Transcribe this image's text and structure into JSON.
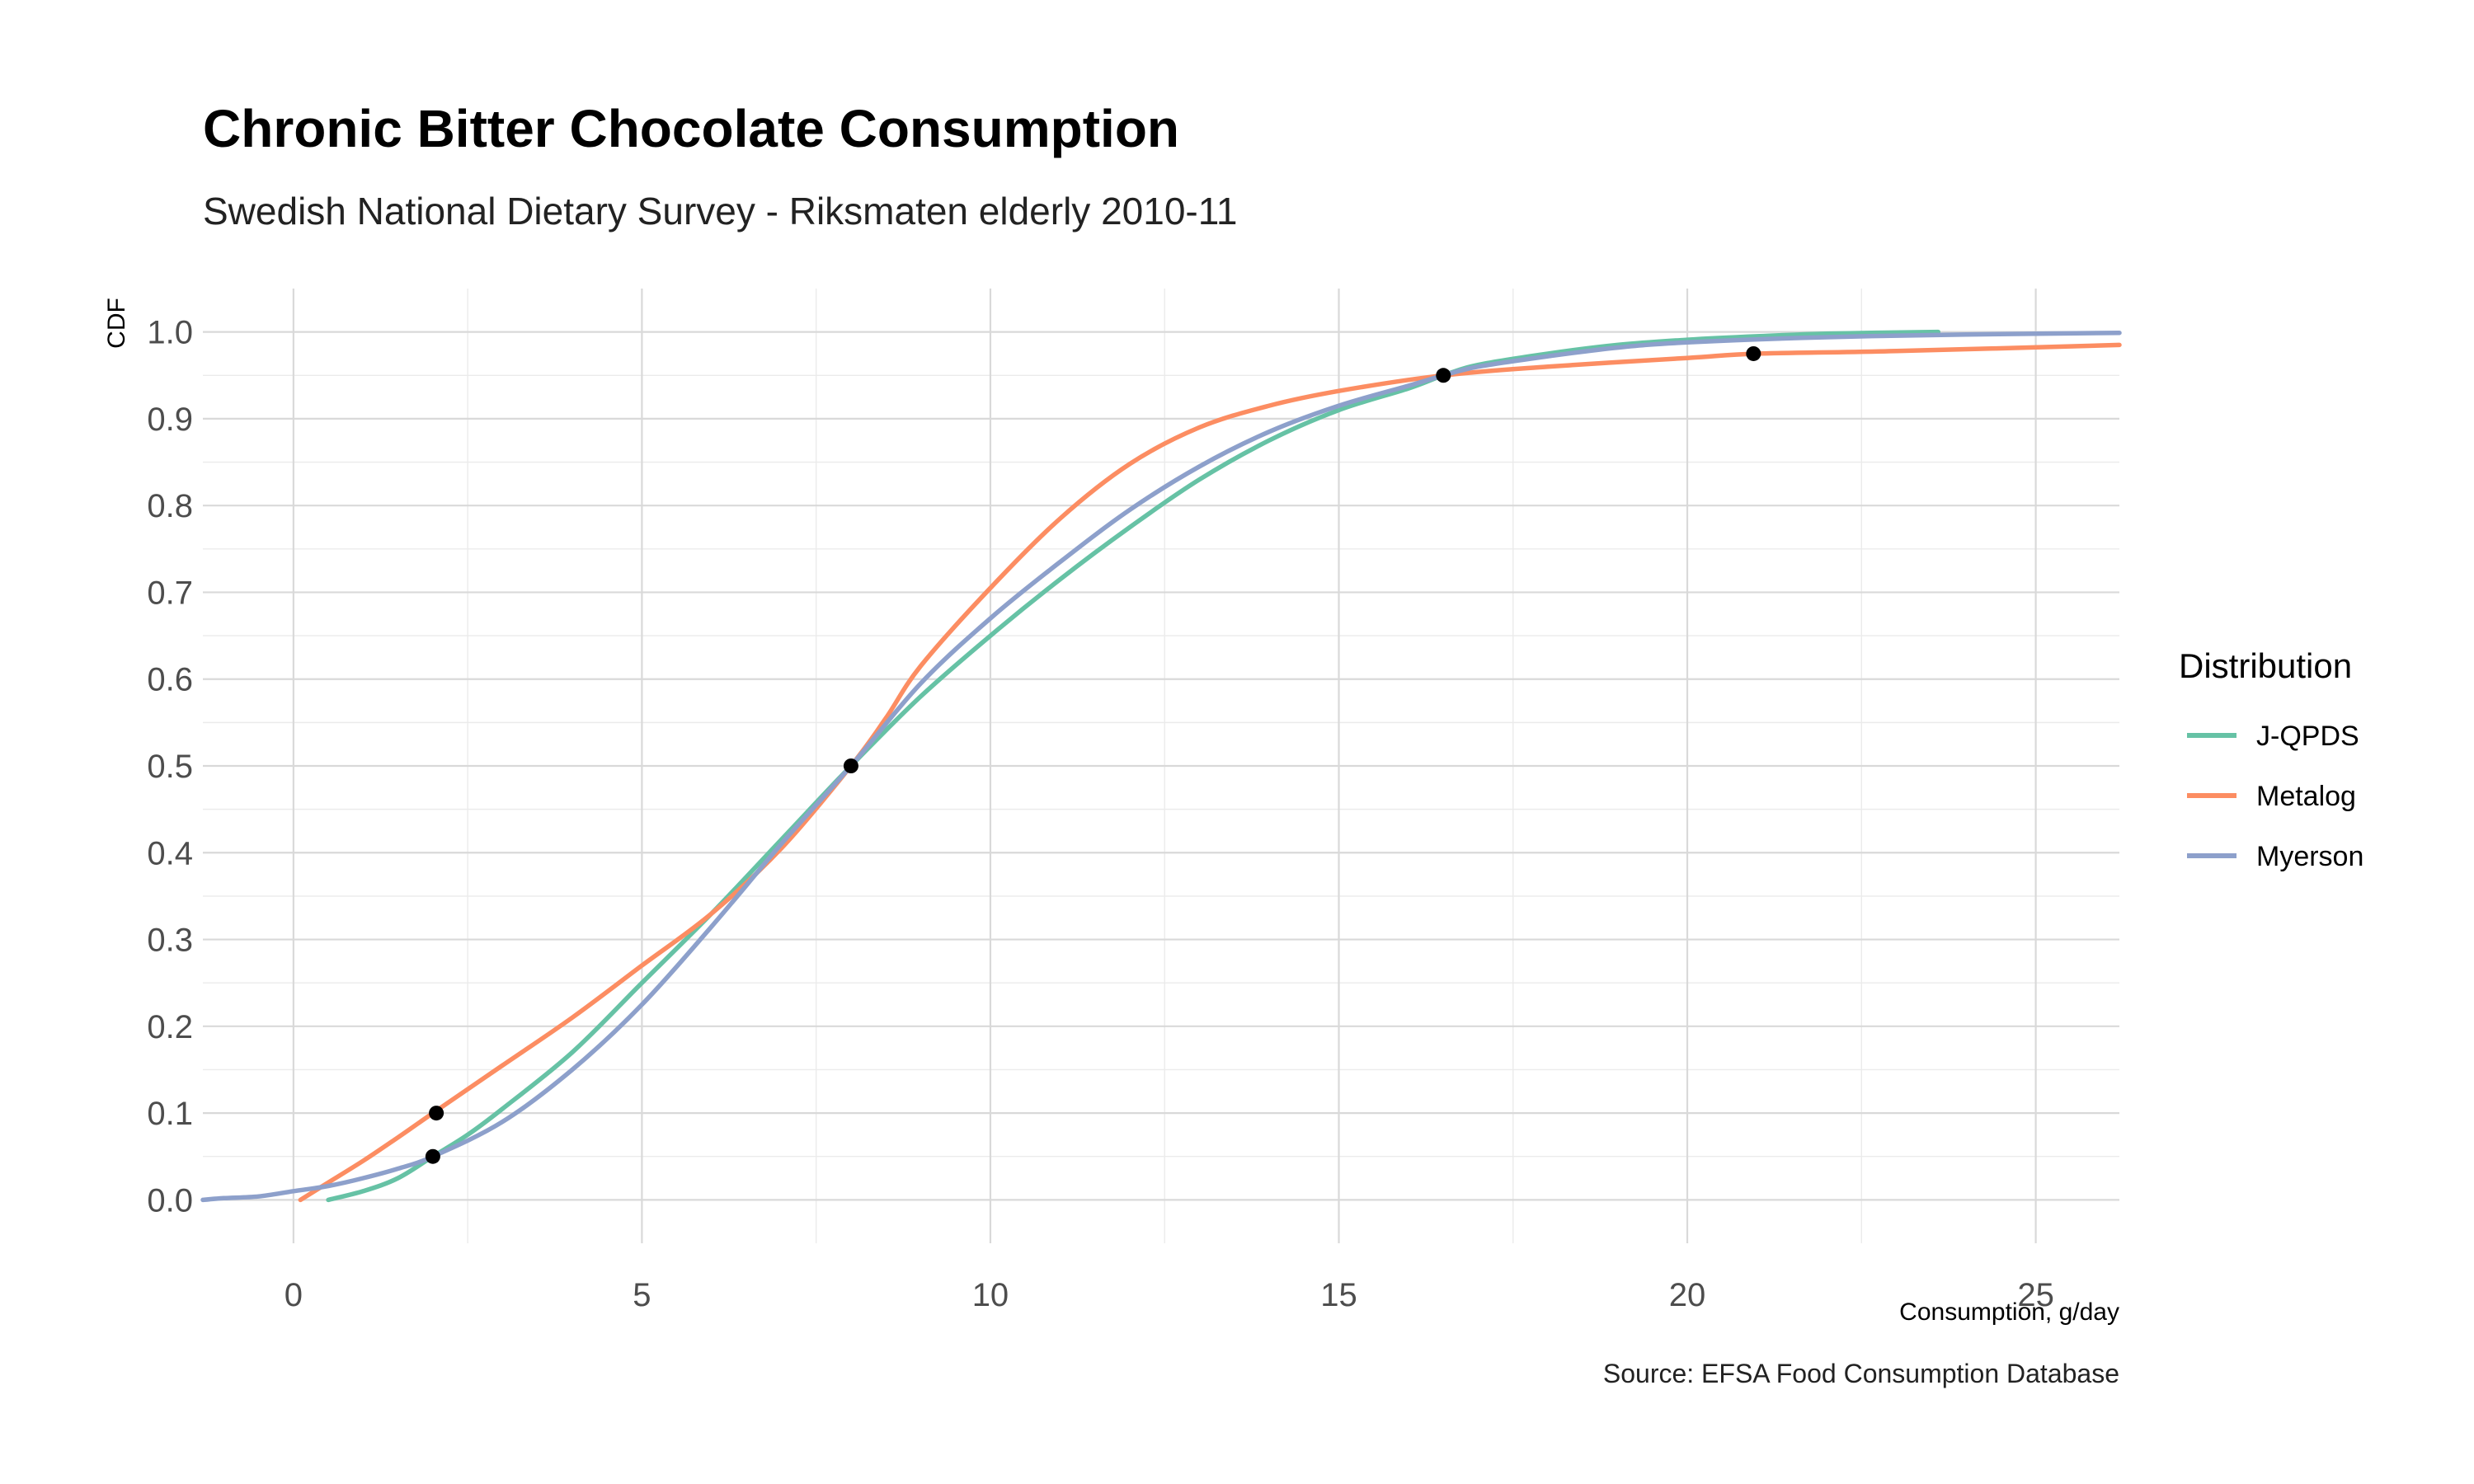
{
  "chart_data": {
    "type": "line",
    "title": "Chronic Bitter Chocolate Consumption",
    "subtitle": "Swedish National Dietary Survey - Riksmaten elderly 2010-11",
    "xlabel": "Consumption, g/day",
    "ylabel": "CDF",
    "caption": "Source: EFSA Food Consumption Database",
    "xlim": [
      -1.3,
      26.2
    ],
    "ylim": [
      -0.05,
      1.05
    ],
    "x_ticks": [
      0,
      5,
      10,
      15,
      20,
      25
    ],
    "x_tick_labels": [
      "0",
      "5",
      "10",
      "15",
      "20",
      "25"
    ],
    "y_ticks": [
      0,
      0.1,
      0.2,
      0.3,
      0.4,
      0.5,
      0.6,
      0.7,
      0.8,
      0.9,
      1.0
    ],
    "y_tick_labels": [
      "0.0",
      "0.1",
      "0.2",
      "0.3",
      "0.4",
      "0.5",
      "0.6",
      "0.7",
      "0.8",
      "0.9",
      "1.0"
    ],
    "grid": true,
    "legend": {
      "title": "Distribution",
      "position": "right"
    },
    "series": [
      {
        "name": "J-QPDS",
        "color": "#66c2a5",
        "points": [
          [
            0.5,
            0.0
          ],
          [
            1.0,
            0.01
          ],
          [
            1.5,
            0.025
          ],
          [
            2.0,
            0.05
          ],
          [
            2.5,
            0.075
          ],
          [
            3.0,
            0.105
          ],
          [
            4.0,
            0.17
          ],
          [
            5.0,
            0.25
          ],
          [
            6.0,
            0.33
          ],
          [
            7.0,
            0.415
          ],
          [
            8.0,
            0.5
          ],
          [
            9.0,
            0.58
          ],
          [
            10.0,
            0.65
          ],
          [
            11.0,
            0.715
          ],
          [
            12.0,
            0.775
          ],
          [
            13.0,
            0.83
          ],
          [
            14.0,
            0.875
          ],
          [
            15.0,
            0.91
          ],
          [
            16.0,
            0.935
          ],
          [
            16.5,
            0.95
          ],
          [
            17.0,
            0.962
          ],
          [
            18.0,
            0.975
          ],
          [
            19.0,
            0.985
          ],
          [
            20.0,
            0.991
          ],
          [
            21.0,
            0.995
          ],
          [
            22.0,
            0.998
          ],
          [
            23.6,
            1.0
          ]
        ]
      },
      {
        "name": "Metalog",
        "color": "#fc8d62",
        "points": [
          [
            0.1,
            0.0
          ],
          [
            0.5,
            0.02
          ],
          [
            1.0,
            0.045
          ],
          [
            1.5,
            0.072
          ],
          [
            2.0,
            0.1
          ],
          [
            3.0,
            0.155
          ],
          [
            4.0,
            0.21
          ],
          [
            5.0,
            0.27
          ],
          [
            6.0,
            0.33
          ],
          [
            7.0,
            0.405
          ],
          [
            8.0,
            0.5
          ],
          [
            8.5,
            0.555
          ],
          [
            9.0,
            0.615
          ],
          [
            10.0,
            0.705
          ],
          [
            11.0,
            0.785
          ],
          [
            12.0,
            0.848
          ],
          [
            13.0,
            0.89
          ],
          [
            14.0,
            0.915
          ],
          [
            15.0,
            0.932
          ],
          [
            16.5,
            0.95
          ],
          [
            18.0,
            0.96
          ],
          [
            20.0,
            0.97
          ],
          [
            21.0,
            0.975
          ],
          [
            23.0,
            0.978
          ],
          [
            26.2,
            0.985
          ]
        ]
      },
      {
        "name": "Myerson",
        "color": "#8da0cb",
        "points": [
          [
            -1.3,
            0.0
          ],
          [
            -1.0,
            0.002
          ],
          [
            -0.5,
            0.004
          ],
          [
            0.0,
            0.01
          ],
          [
            0.5,
            0.016
          ],
          [
            1.0,
            0.025
          ],
          [
            1.5,
            0.036
          ],
          [
            2.0,
            0.05
          ],
          [
            3.0,
            0.09
          ],
          [
            4.0,
            0.15
          ],
          [
            5.0,
            0.225
          ],
          [
            6.0,
            0.315
          ],
          [
            7.0,
            0.41
          ],
          [
            8.0,
            0.5
          ],
          [
            9.0,
            0.595
          ],
          [
            10.0,
            0.67
          ],
          [
            11.0,
            0.735
          ],
          [
            12.0,
            0.795
          ],
          [
            13.0,
            0.845
          ],
          [
            14.0,
            0.885
          ],
          [
            15.0,
            0.915
          ],
          [
            16.0,
            0.938
          ],
          [
            16.5,
            0.95
          ],
          [
            17.0,
            0.96
          ],
          [
            18.0,
            0.972
          ],
          [
            19.0,
            0.982
          ],
          [
            20.0,
            0.988
          ],
          [
            22.0,
            0.994
          ],
          [
            24.0,
            0.997
          ],
          [
            26.2,
            0.999
          ]
        ]
      }
    ],
    "marked_points": [
      [
        2.05,
        0.1
      ],
      [
        2.0,
        0.05
      ],
      [
        8.0,
        0.5
      ],
      [
        16.5,
        0.95
      ],
      [
        20.95,
        0.975
      ]
    ],
    "marked_point_color": "#000000"
  }
}
